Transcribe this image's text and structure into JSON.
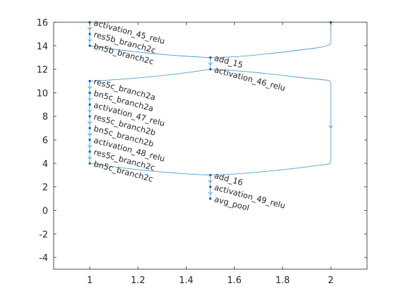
{
  "chart_data": {
    "type": "graph",
    "title": "",
    "xlabel": "",
    "ylabel": "",
    "xlim": [
      0.85,
      2.15
    ],
    "ylim": [
      -5,
      16
    ],
    "xticks": [
      1,
      1.2,
      1.4,
      1.6,
      1.8,
      2
    ],
    "yticks": [
      -4,
      -2,
      0,
      2,
      4,
      6,
      8,
      10,
      12,
      14,
      16
    ],
    "grid": false,
    "color": "#3b8fc4",
    "node_color": "#0b5fa5",
    "nodes": [
      {
        "id": "top",
        "label": "",
        "x": 2,
        "y": 16
      },
      {
        "id": "activation_45_relu",
        "label": "activation_45_relu",
        "x": 1,
        "y": 16
      },
      {
        "id": "res5b_branch2c",
        "label": "res5b_branch2c",
        "x": 1,
        "y": 15
      },
      {
        "id": "bn5b_branch2c",
        "label": "bn5b_branch2c",
        "x": 1,
        "y": 14
      },
      {
        "id": "add_15",
        "label": "add_15",
        "x": 1.5,
        "y": 13
      },
      {
        "id": "activation_46_relu",
        "label": "activation_46_relu",
        "x": 1.5,
        "y": 12
      },
      {
        "id": "res5c_branch2a",
        "label": "res5c_branch2a",
        "x": 1,
        "y": 11
      },
      {
        "id": "bn5c_branch2a",
        "label": "bn5c_branch2a",
        "x": 1,
        "y": 10
      },
      {
        "id": "activation_47_relu",
        "label": "activation_47_relu",
        "x": 1,
        "y": 9
      },
      {
        "id": "res5c_branch2b",
        "label": "res5c_branch2b",
        "x": 1,
        "y": 8
      },
      {
        "id": "bn5c_branch2b",
        "label": "bn5c_branch2b",
        "x": 1,
        "y": 7
      },
      {
        "id": "activation_48_relu",
        "label": "activation_48_relu",
        "x": 1,
        "y": 6
      },
      {
        "id": "res5c_branch2c",
        "label": "res5c_branch2c",
        "x": 1,
        "y": 5
      },
      {
        "id": "bn5c_branch2c",
        "label": "bn5c_branch2c",
        "x": 1,
        "y": 4
      },
      {
        "id": "add_16",
        "label": "add_16",
        "x": 1.5,
        "y": 3
      },
      {
        "id": "activation_49_relu",
        "label": "activation_49_relu",
        "x": 1.5,
        "y": 2
      },
      {
        "id": "avg_pool",
        "label": "avg_pool",
        "x": 1.5,
        "y": 1
      }
    ],
    "edges": [
      {
        "from": "activation_45_relu",
        "to": "res5b_branch2c",
        "curve": "straight"
      },
      {
        "from": "res5b_branch2c",
        "to": "bn5b_branch2c",
        "curve": "straight"
      },
      {
        "from": "bn5b_branch2c",
        "to": "add_15",
        "curve": "smooth"
      },
      {
        "from": "top",
        "to": "add_15",
        "curve": "elbow"
      },
      {
        "from": "add_15",
        "to": "activation_46_relu",
        "curve": "straight"
      },
      {
        "from": "activation_46_relu",
        "to": "res5c_branch2a",
        "curve": "smooth"
      },
      {
        "from": "activation_46_relu",
        "to": "add_16",
        "curve": "skip",
        "x_route": 2
      },
      {
        "from": "res5c_branch2a",
        "to": "bn5c_branch2a",
        "curve": "straight"
      },
      {
        "from": "bn5c_branch2a",
        "to": "activation_47_relu",
        "curve": "straight"
      },
      {
        "from": "activation_47_relu",
        "to": "res5c_branch2b",
        "curve": "straight"
      },
      {
        "from": "res5c_branch2b",
        "to": "bn5c_branch2b",
        "curve": "straight"
      },
      {
        "from": "bn5c_branch2b",
        "to": "activation_48_relu",
        "curve": "straight"
      },
      {
        "from": "activation_48_relu",
        "to": "res5c_branch2c",
        "curve": "straight"
      },
      {
        "from": "res5c_branch2c",
        "to": "bn5c_branch2c",
        "curve": "straight"
      },
      {
        "from": "bn5c_branch2c",
        "to": "add_16",
        "curve": "smooth"
      },
      {
        "from": "add_16",
        "to": "activation_49_relu",
        "curve": "straight"
      },
      {
        "from": "activation_49_relu",
        "to": "avg_pool",
        "curve": "straight"
      }
    ]
  }
}
